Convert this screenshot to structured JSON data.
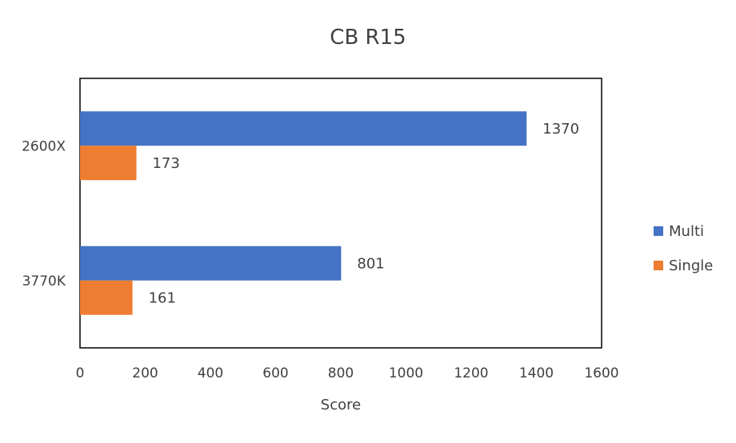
{
  "chart_data": {
    "type": "bar",
    "orientation": "horizontal",
    "title": "CB R15",
    "xlabel": "Score",
    "ylabel": "",
    "categories": [
      "2600X",
      "3770K"
    ],
    "series": [
      {
        "name": "Multi",
        "values": [
          1370,
          801
        ],
        "color": "#4472C4"
      },
      {
        "name": "Single",
        "values": [
          173,
          161
        ],
        "color": "#ED7D31"
      }
    ],
    "xlim": [
      0,
      1600
    ],
    "xticks": [
      0,
      200,
      400,
      600,
      800,
      1000,
      1200,
      1400,
      1600
    ],
    "grid": false,
    "data_labels": true,
    "legend_position": "right"
  }
}
